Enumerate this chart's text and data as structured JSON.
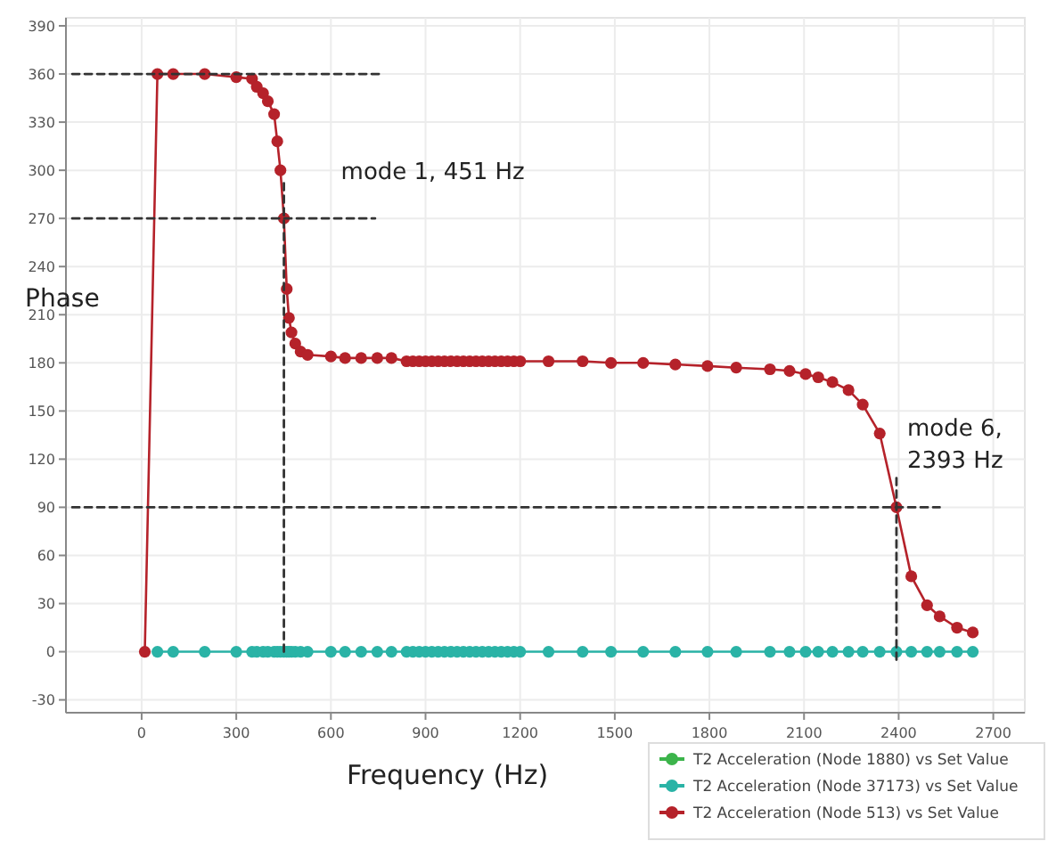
{
  "chart_data": {
    "type": "line",
    "xlabel": "Frequency (Hz)",
    "ylabel": "Phase",
    "xlim": [
      -240,
      2800
    ],
    "ylim": [
      -38,
      395
    ],
    "xticks": [
      0,
      300,
      600,
      900,
      1200,
      1500,
      1800,
      2100,
      2400,
      2700
    ],
    "yticks": [
      -30,
      0,
      30,
      60,
      90,
      120,
      150,
      180,
      210,
      240,
      270,
      300,
      330,
      360,
      390
    ],
    "grid": true,
    "legend": "bottom right",
    "marker": "circle",
    "line_style": "solid",
    "annotations": [
      {
        "text": "mode 1, 451 Hz",
        "x": 451,
        "y": 270
      },
      {
        "text": "mode 6,\n2393 Hz",
        "x": 2393,
        "y": 90
      }
    ],
    "series": [
      {
        "name": "T2 Acceleration (Node 1880) vs Set Value",
        "color": "#3cb44b"
      },
      {
        "name": "T2 Acceleration (Node 37173) vs Set Value",
        "color": "#2ab3a6",
        "x": [
          50,
          100,
          200,
          300,
          350,
          365,
          385,
          400,
          420,
          430,
          440,
          451,
          460,
          467,
          475,
          487,
          504,
          526,
          600,
          645,
          696,
          747,
          792,
          840,
          860,
          880,
          900,
          920,
          940,
          960,
          980,
          1000,
          1020,
          1040,
          1060,
          1080,
          1100,
          1120,
          1140,
          1160,
          1180,
          1200,
          1290,
          1398,
          1488,
          1590,
          1692,
          1794,
          1885,
          1992,
          2054,
          2105,
          2145,
          2190,
          2241,
          2286,
          2340,
          2393,
          2440,
          2490,
          2530,
          2585,
          2635
        ],
        "values": [
          0,
          0,
          0,
          0,
          0,
          0,
          0,
          0,
          0,
          0,
          0,
          0,
          0,
          0,
          0,
          0,
          0,
          0,
          0,
          0,
          0,
          0,
          0,
          0,
          0,
          0,
          0,
          0,
          0,
          0,
          0,
          0,
          0,
          0,
          0,
          0,
          0,
          0,
          0,
          0,
          0,
          0,
          0,
          0,
          0,
          0,
          0,
          0,
          0,
          0,
          0,
          0,
          0,
          0,
          0,
          0,
          0,
          0,
          0,
          0,
          0,
          0,
          0
        ]
      },
      {
        "name": "T2 Acceleration (Node 513) vs Set Value",
        "color": "#b5222a",
        "x": [
          10,
          50,
          100,
          200,
          300,
          350,
          365,
          385,
          400,
          420,
          430,
          440,
          451,
          460,
          467,
          475,
          487,
          504,
          526,
          600,
          645,
          696,
          747,
          792,
          840,
          860,
          880,
          900,
          920,
          940,
          960,
          980,
          1000,
          1020,
          1040,
          1060,
          1080,
          1100,
          1120,
          1140,
          1160,
          1180,
          1200,
          1290,
          1398,
          1488,
          1590,
          1692,
          1794,
          1885,
          1992,
          2054,
          2105,
          2145,
          2190,
          2241,
          2286,
          2340,
          2393,
          2440,
          2490,
          2530,
          2585,
          2635
        ],
        "values": [
          0,
          360,
          360,
          360,
          358,
          357,
          352,
          348,
          343,
          335,
          318,
          300,
          270,
          226,
          208,
          199,
          192,
          187,
          185,
          184,
          183,
          183,
          183,
          183,
          181,
          181,
          181,
          181,
          181,
          181,
          181,
          181,
          181,
          181,
          181,
          181,
          181,
          181,
          181,
          181,
          181,
          181,
          181,
          181,
          181,
          180,
          180,
          179,
          178,
          177,
          176,
          175,
          173,
          171,
          168,
          163,
          154,
          136,
          90,
          47,
          29,
          22,
          15,
          12
        ]
      },
      {
        "type": "line",
        "color": "#333333",
        "line_style": "dashed",
        "marker": "none",
        "x": [
          -220,
          760
        ],
        "values": [
          360,
          360
        ]
      },
      {
        "type": "line",
        "color": "#333333",
        "line_style": "dashed",
        "marker": "none",
        "x": [
          -220,
          740
        ],
        "values": [
          270,
          270
        ]
      },
      {
        "type": "line",
        "color": "#333333",
        "line_style": "dashed",
        "marker": "none",
        "x": [
          -220,
          2530
        ],
        "values": [
          90,
          90
        ]
      },
      {
        "type": "line",
        "color": "#333333",
        "line_style": "dashed",
        "marker": "none",
        "x": [
          451,
          451
        ],
        "values": [
          0,
          295
        ]
      },
      {
        "type": "line",
        "color": "#333333",
        "line_style": "dashed",
        "marker": "none",
        "x": [
          2393,
          2393
        ],
        "values": [
          -5,
          110
        ]
      }
    ]
  }
}
